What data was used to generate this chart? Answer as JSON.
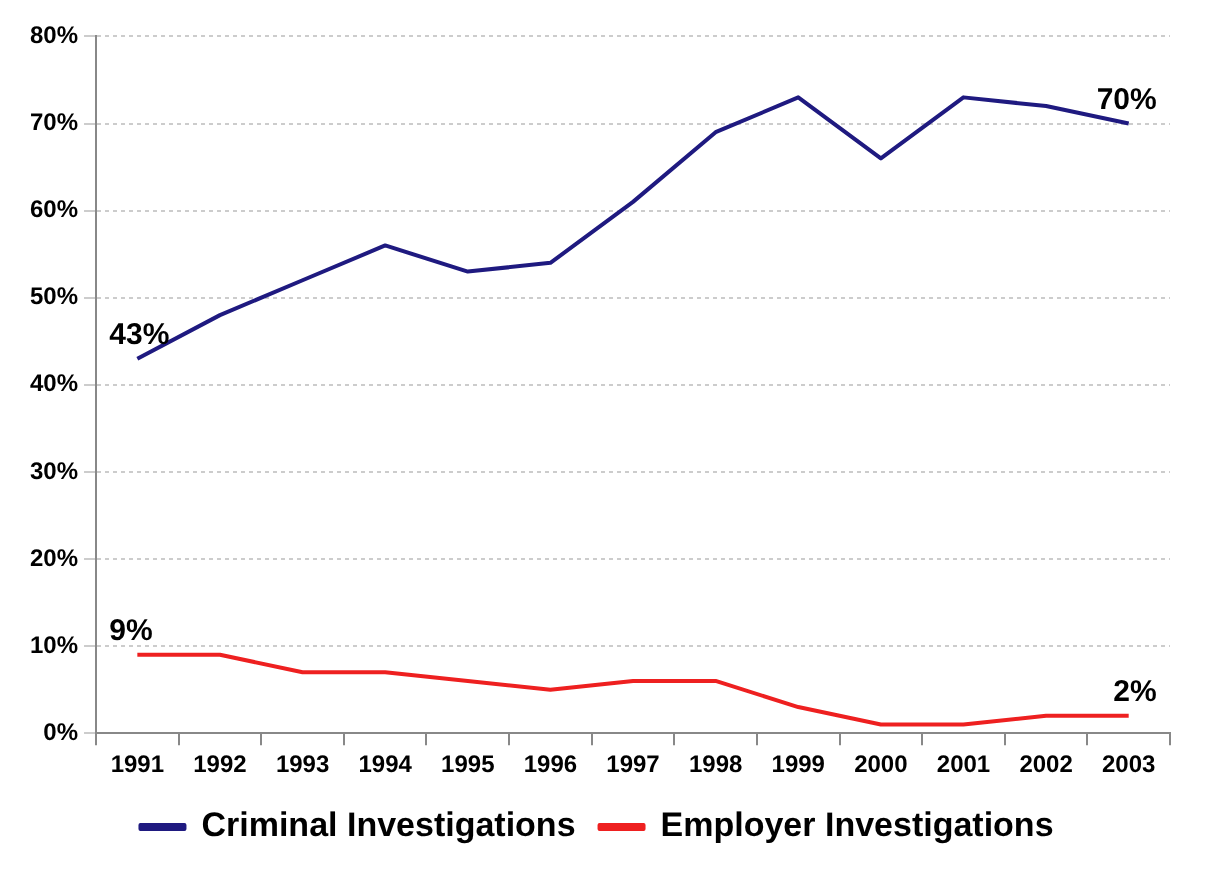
{
  "chart_data": {
    "type": "line",
    "categories": [
      "1991",
      "1992",
      "1993",
      "1994",
      "1995",
      "1996",
      "1997",
      "1998",
      "1999",
      "2000",
      "2001",
      "2002",
      "2003"
    ],
    "series": [
      {
        "name": "Criminal Investigations",
        "color": "#1f1a80",
        "values": [
          43,
          48,
          52,
          56,
          53,
          54,
          61,
          69,
          73,
          66,
          73,
          72,
          70
        ]
      },
      {
        "name": "Employer Investigations",
        "color": "#ee2020",
        "values": [
          9,
          9,
          7,
          7,
          6,
          5,
          6,
          6,
          3,
          1,
          1,
          2,
          2
        ]
      }
    ],
    "ylim": [
      0,
      80
    ],
    "yticks": [
      {
        "value": 0,
        "label": "0%"
      },
      {
        "value": 10,
        "label": "10%"
      },
      {
        "value": 20,
        "label": "20%"
      },
      {
        "value": 30,
        "label": "30%"
      },
      {
        "value": 40,
        "label": "40%"
      },
      {
        "value": 50,
        "label": "50%"
      },
      {
        "value": 60,
        "label": "60%"
      },
      {
        "value": 70,
        "label": "70%"
      },
      {
        "value": 80,
        "label": "80%"
      }
    ],
    "grid": "y",
    "legend": "bottom",
    "marker": "none",
    "line_style": "solid",
    "annotations": [
      {
        "text": "43%",
        "x": "1991",
        "y": 43
      },
      {
        "text": "70%",
        "x": "2003",
        "y": 70
      },
      {
        "text": "9%",
        "x": "1991",
        "y": 9
      },
      {
        "text": "2%",
        "x": "2003",
        "y": 2
      }
    ]
  }
}
